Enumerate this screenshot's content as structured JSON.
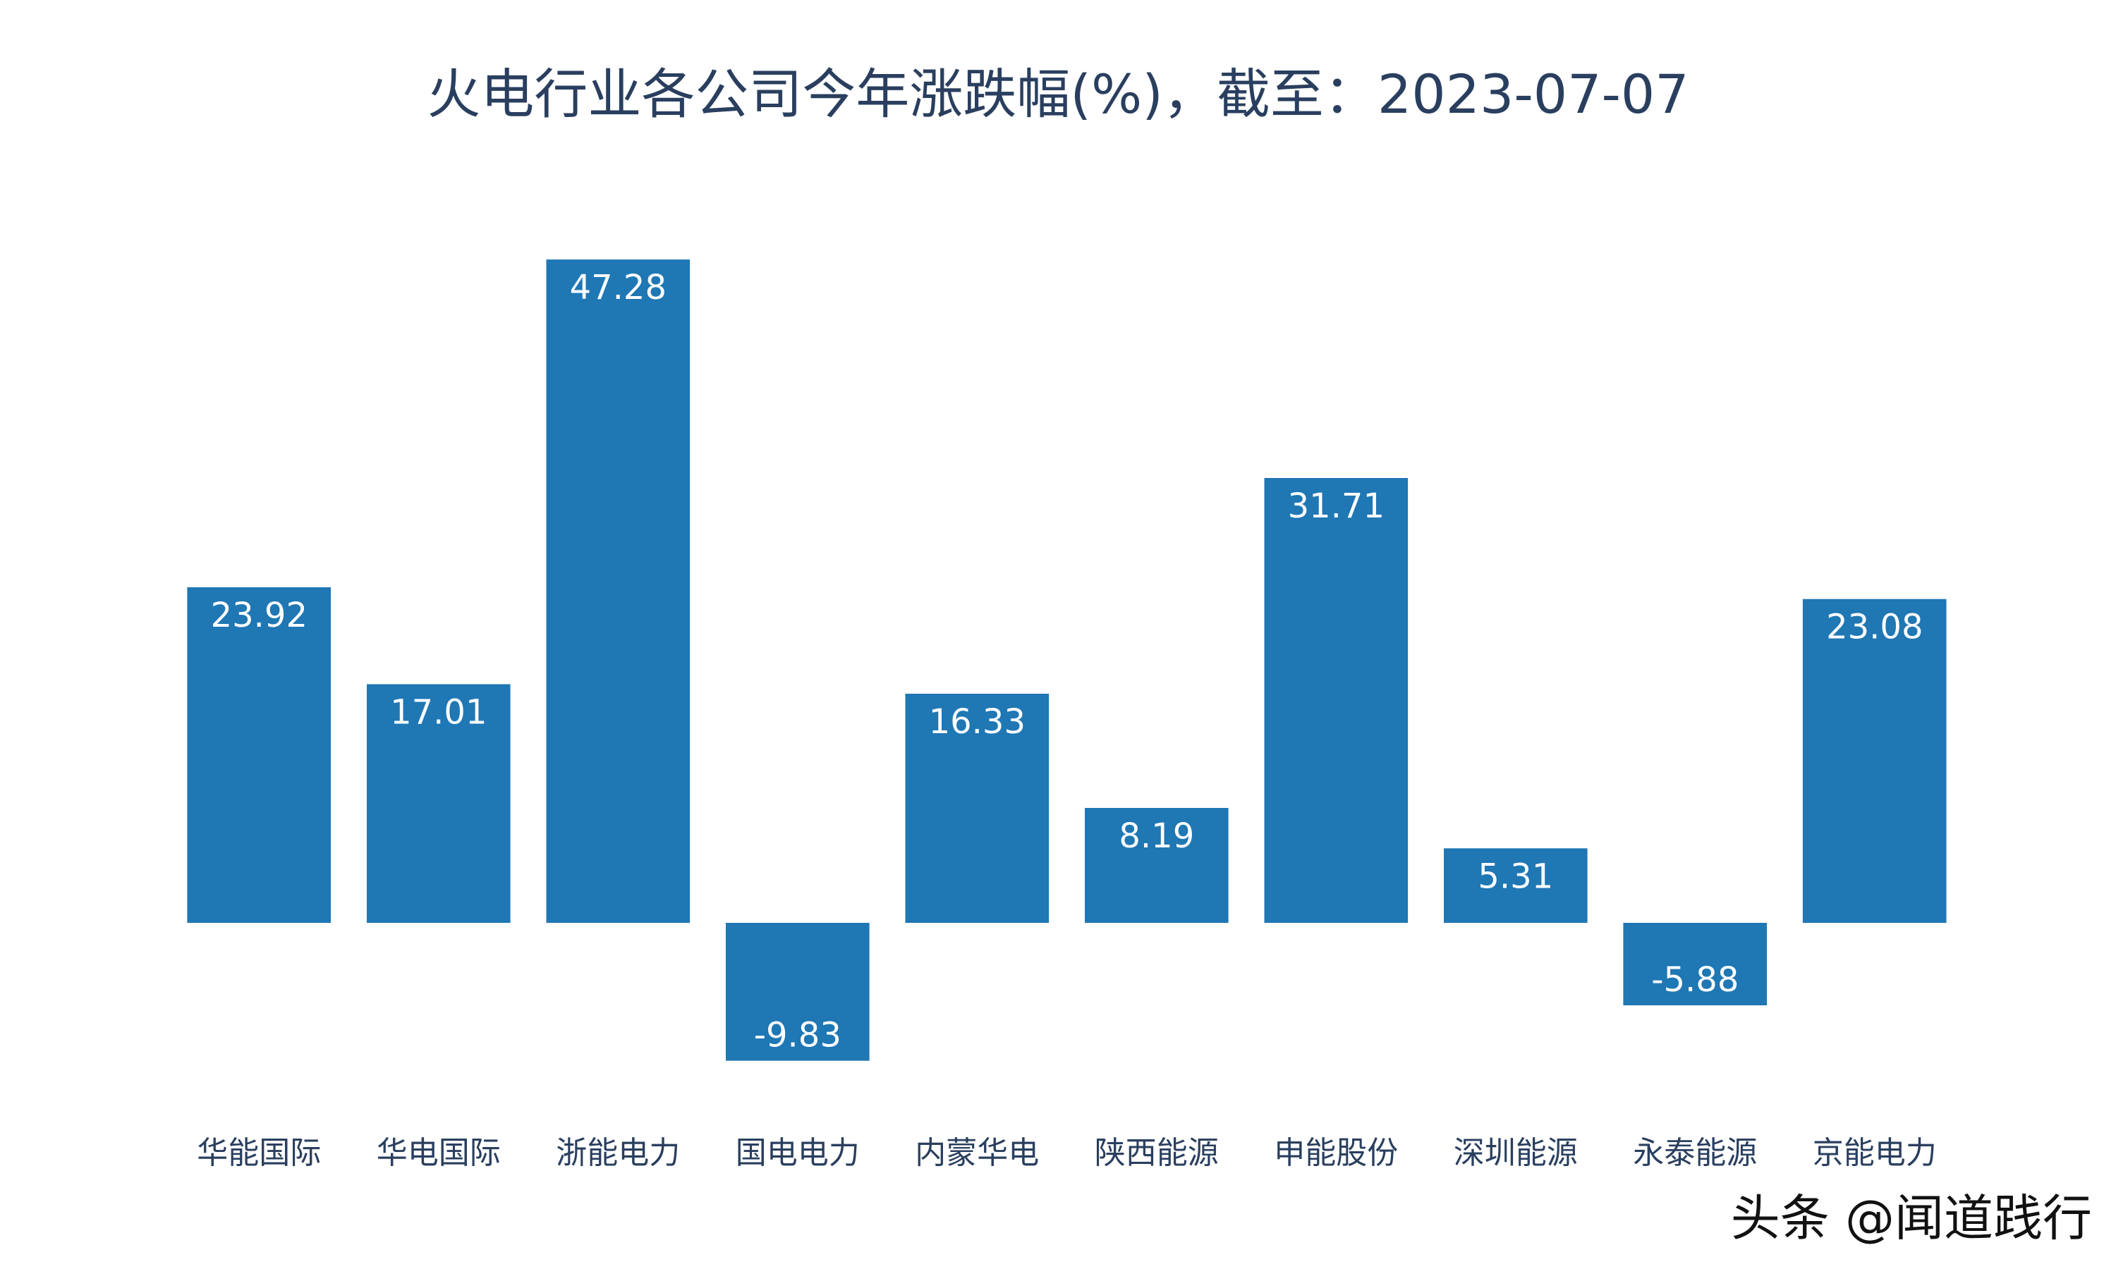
{
  "chart_data": {
    "type": "bar",
    "title": "火电行业各公司今年涨跌幅(%)，截至：2023-07-07",
    "categories": [
      "华能国际",
      "华电国际",
      "浙能电力",
      "国电电力",
      "内蒙华电",
      "陕西能源",
      "申能股份",
      "深圳能源",
      "永泰能源",
      "京能电力"
    ],
    "values": [
      23.92,
      17.01,
      47.28,
      -9.83,
      16.33,
      8.19,
      31.71,
      5.31,
      -5.88,
      23.08
    ],
    "xlabel": "",
    "ylabel": "",
    "ylim": [
      -15,
      55
    ],
    "grid": false,
    "data_labels": "inside-end",
    "bar_color": "#1f77b4"
  },
  "watermark": {
    "text": "头条 @闻道践行"
  }
}
